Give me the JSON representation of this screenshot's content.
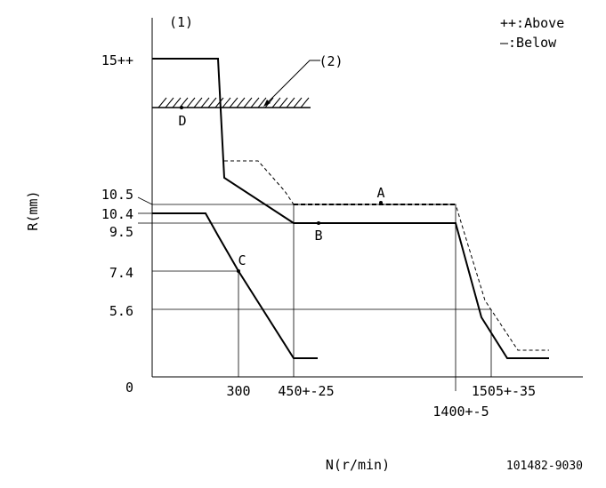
{
  "chart_data": {
    "type": "line",
    "figure_number_label": "(1)",
    "legend": {
      "above": "++:Above",
      "below": "—:Below"
    },
    "xlabel": "N(r/min)",
    "ylabel": "R(mm)",
    "drawing_id": "101482-9030",
    "x_ticks": [
      {
        "label": "300",
        "value": 300
      },
      {
        "label": "450+-25",
        "value": 450
      },
      {
        "label": "1400+-5",
        "value": 1400
      },
      {
        "label": "1505+-35",
        "value": 1505
      }
    ],
    "y_ticks": [
      {
        "label": "0",
        "value": 0
      },
      {
        "label": "5.6",
        "value": 5.6
      },
      {
        "label": "7.4",
        "value": 7.4
      },
      {
        "label": "9.5",
        "value": 9.5
      },
      {
        "label": "10.4",
        "value": 10.4
      },
      {
        "label": "10.5",
        "value": 10.5
      },
      {
        "label": "15++",
        "value": 15
      }
    ],
    "annotations": [
      {
        "label": "A",
        "x": 730,
        "y": 10.5
      },
      {
        "label": "B",
        "x": 520,
        "y": 9.5
      },
      {
        "label": "C",
        "x": 300,
        "y": 7.4
      },
      {
        "label": "D",
        "x": 100,
        "y": 12.8
      },
      {
        "label": "(2)",
        "x": 330,
        "y": 12.8
      }
    ],
    "limit_band_y": 12.8,
    "series": [
      {
        "style": "solid-thick",
        "points": [
          [
            0,
            15
          ],
          [
            190,
            15
          ],
          [
            210,
            9.9
          ],
          [
            450,
            9.5
          ],
          [
            1400,
            9.5
          ],
          [
            1480,
            5.1
          ],
          [
            1540,
            4.0
          ],
          [
            1650,
            4.0
          ]
        ]
      },
      {
        "style": "dashed",
        "points": [
          [
            210,
            10.6
          ],
          [
            330,
            10.6
          ],
          [
            400,
            10.2
          ],
          [
            450,
            10.5
          ],
          [
            1400,
            10.5
          ],
          [
            1490,
            6.0
          ],
          [
            1560,
            4.3
          ],
          [
            1650,
            4.3
          ]
        ]
      },
      {
        "style": "solid-thick",
        "points": [
          [
            0,
            10.4
          ],
          [
            170,
            10.4
          ],
          [
            190,
            9.0
          ],
          [
            300,
            7.4
          ],
          [
            450,
            3.7
          ],
          [
            480,
            3.7
          ]
        ]
      }
    ]
  }
}
